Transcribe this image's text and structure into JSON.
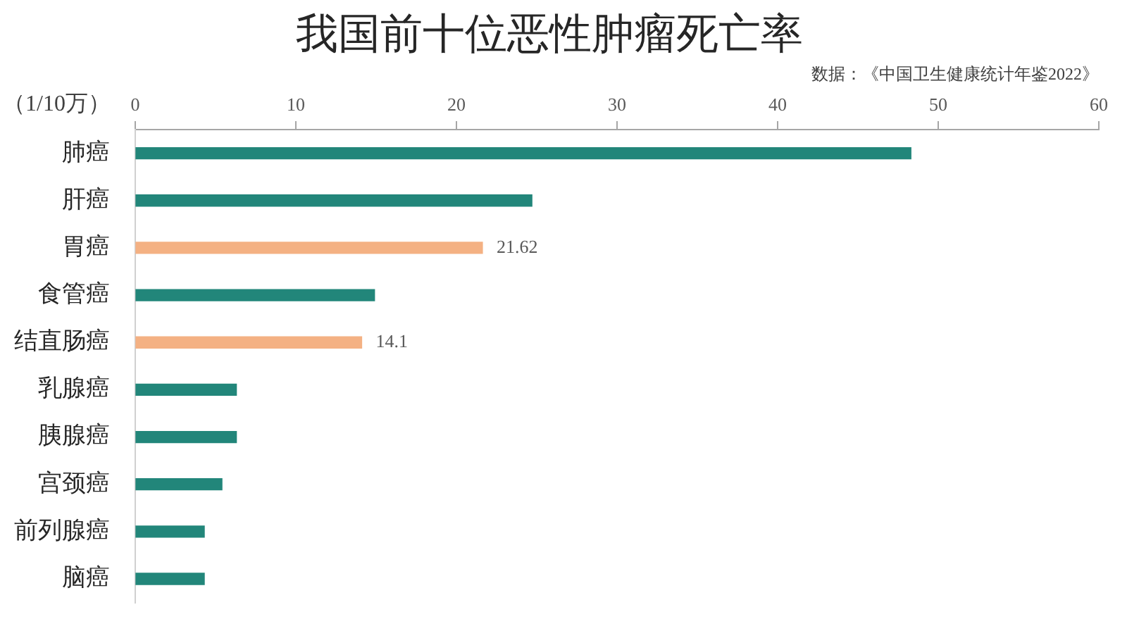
{
  "chart_data": {
    "type": "bar",
    "orientation": "horizontal",
    "title": "我国前十位恶性肿瘤死亡率",
    "subtitle": "数据：《中国卫生健康统计年鉴2022》",
    "xlabel": "（1/10万）",
    "categories": [
      "肺癌",
      "肝癌",
      "胃癌",
      "食管癌",
      "结直肠癌",
      "乳腺癌",
      "胰腺癌",
      "宫颈癌",
      "前列腺癌",
      "脑癌"
    ],
    "values": [
      48.3,
      24.7,
      21.62,
      14.9,
      14.1,
      6.3,
      6.3,
      5.4,
      4.3,
      4.3
    ],
    "colors": [
      "#22867a",
      "#22867a",
      "#f4b183",
      "#22867a",
      "#f4b183",
      "#22867a",
      "#22867a",
      "#22867a",
      "#22867a",
      "#22867a"
    ],
    "value_labels": [
      null,
      null,
      "21.62",
      null,
      "14.1",
      null,
      null,
      null,
      null,
      null
    ],
    "xlim": [
      0,
      60
    ],
    "xticks": [
      0,
      10,
      20,
      30,
      40,
      50,
      60
    ],
    "grid": false,
    "legend": false
  }
}
